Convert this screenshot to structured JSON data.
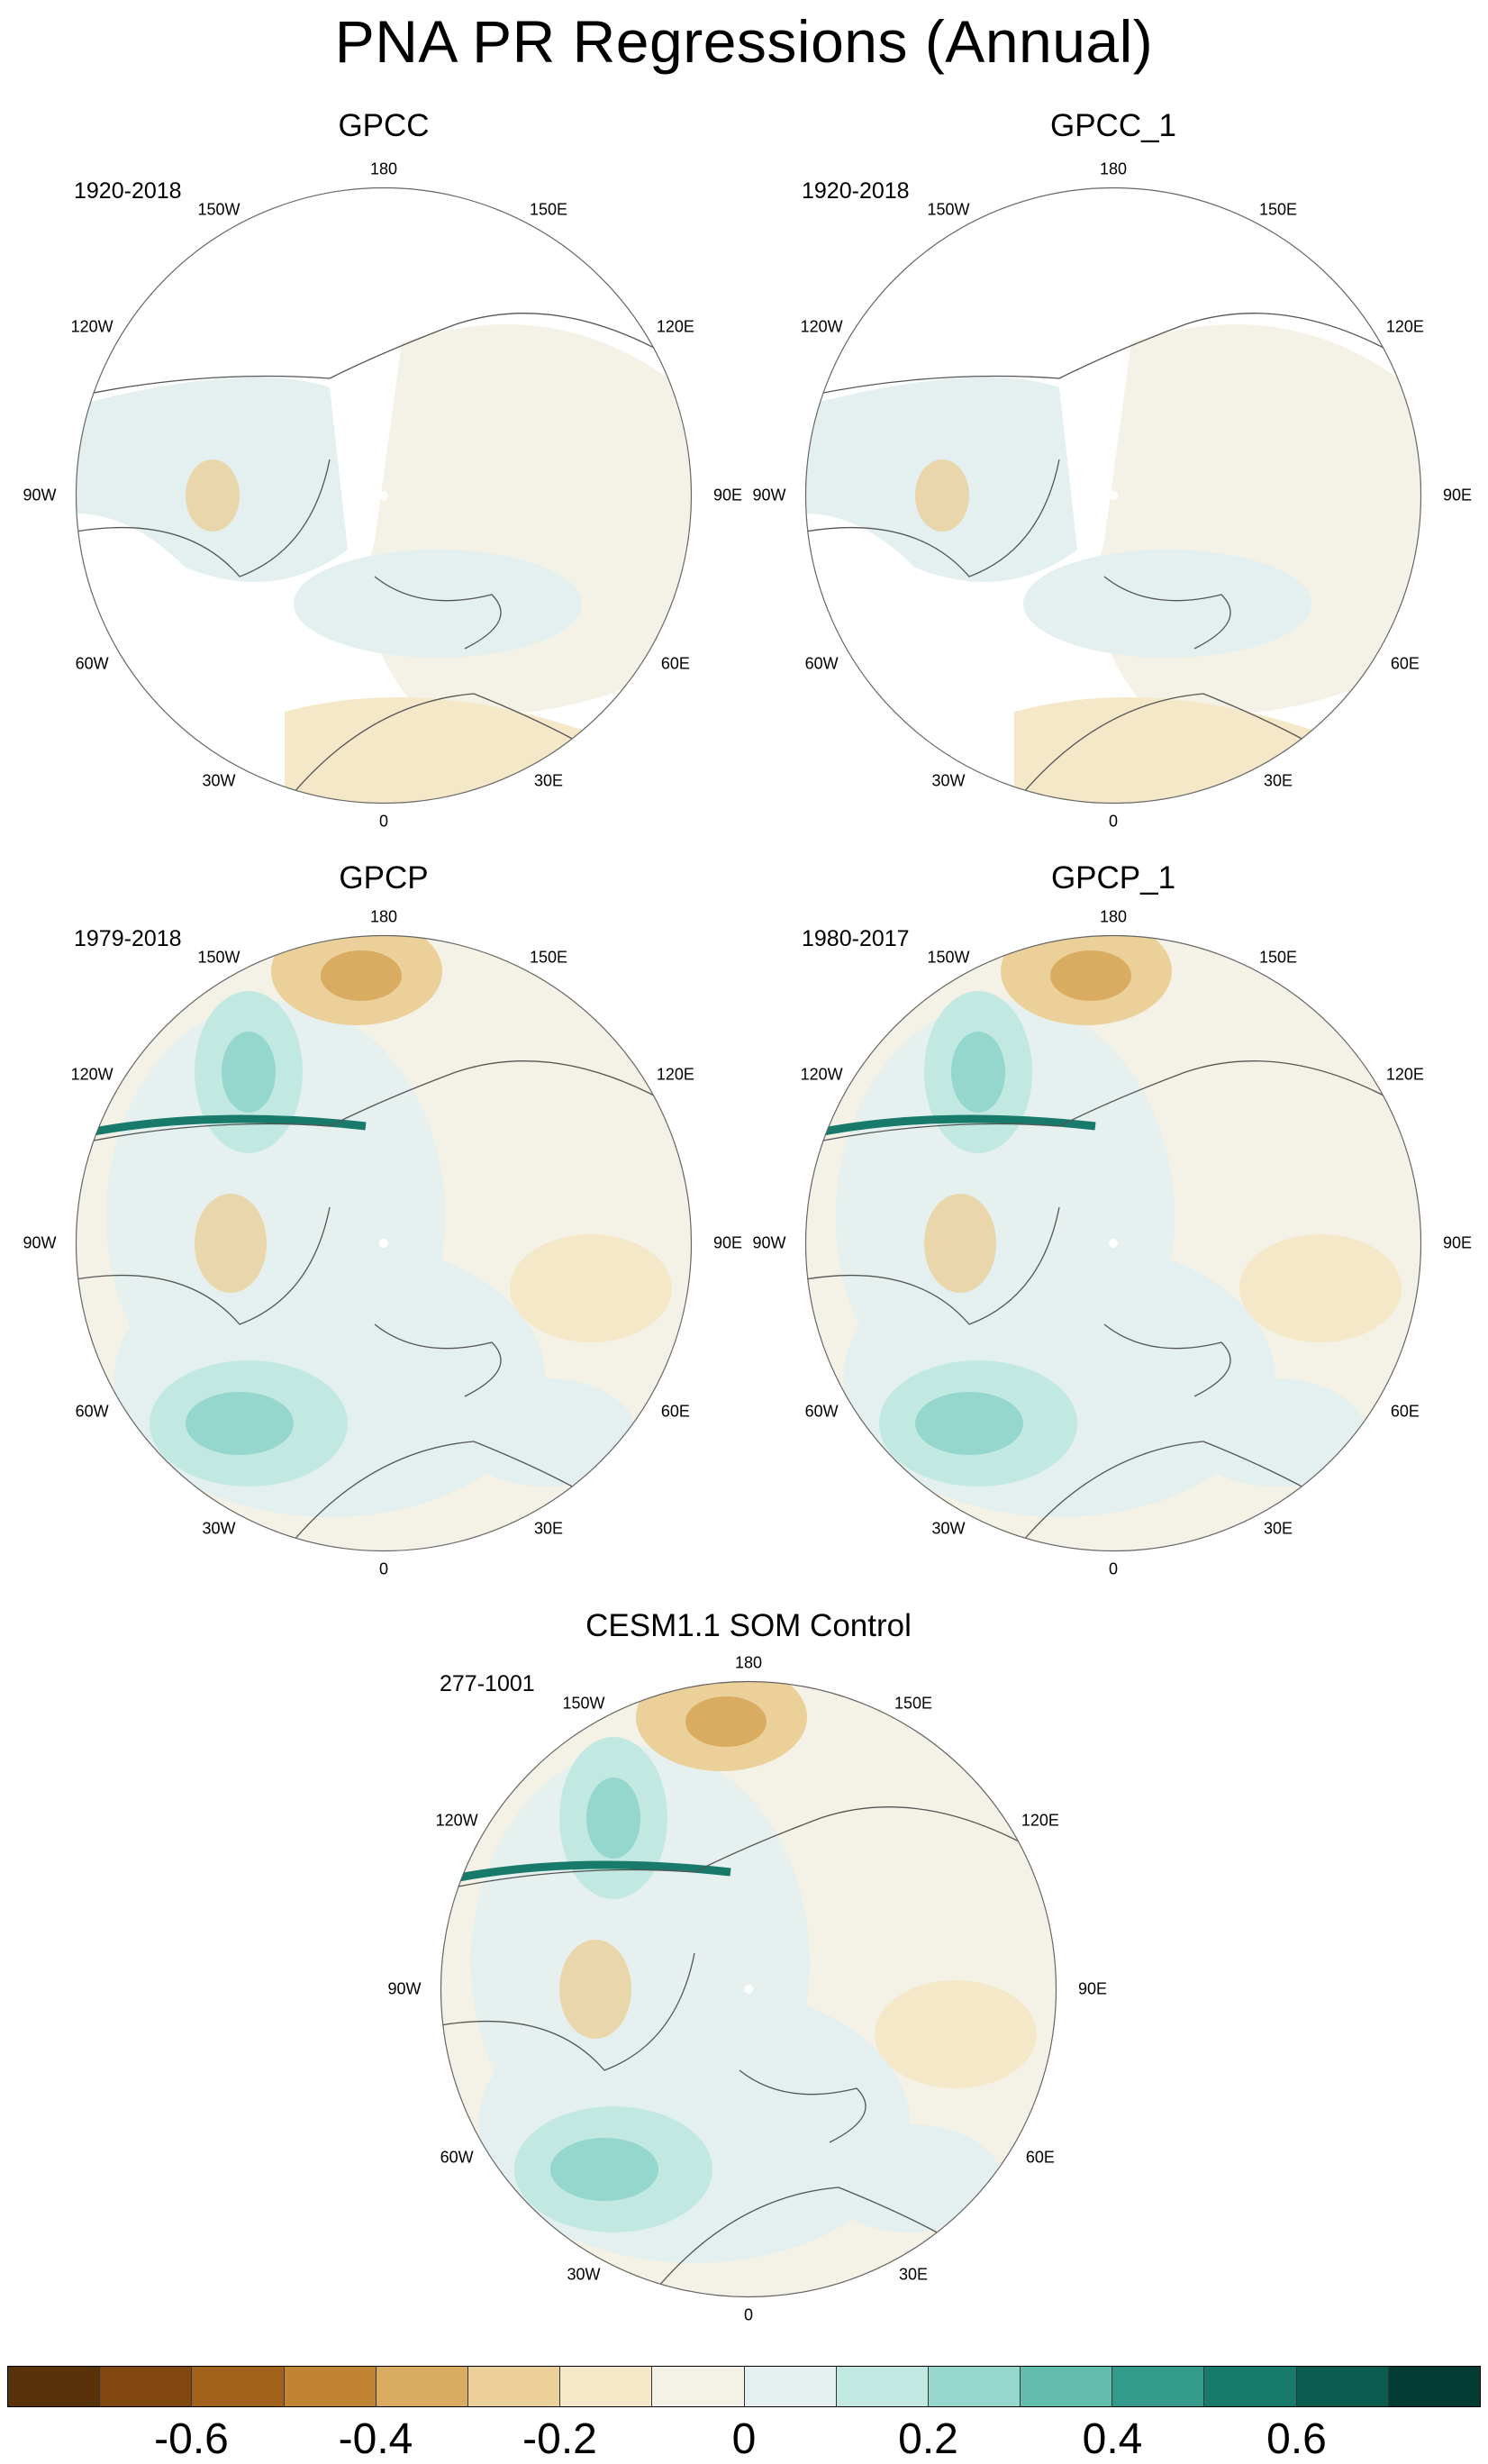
{
  "title": "PNA PR Regressions (Annual)",
  "panels": [
    {
      "title": "GPCC",
      "period": "1920-2018"
    },
    {
      "title": "GPCC_1",
      "period": "1920-2018"
    },
    {
      "title": "GPCP",
      "period": "1979-2018"
    },
    {
      "title": "GPCP_1",
      "period": "1980-2017"
    },
    {
      "title": "CESM1.1 SOM Control",
      "period": "277-1001"
    }
  ],
  "longitude_labels": {
    "top": "180",
    "bottom": "0",
    "left": "90W",
    "right": "90E",
    "w150": "150W",
    "e150": "150E",
    "w120": "120W",
    "e120": "120E",
    "w60": "60W",
    "e60": "60E",
    "w30": "30W",
    "e30": "30E"
  },
  "colorbar": {
    "colors": [
      "#5a3209",
      "#80480f",
      "#a3621c",
      "#c18334",
      "#d9ac62",
      "#ebd09a",
      "#f5e8c8",
      "#f4f1e6",
      "#e3f0ef",
      "#c2e8e2",
      "#95d7cc",
      "#62bdad",
      "#349a8b",
      "#177a6b",
      "#0a5c4e",
      "#033c32"
    ],
    "tick_labels": [
      "-0.6",
      "-0.4",
      "-0.2",
      "0",
      "0.2",
      "0.4",
      "0.6"
    ]
  }
}
